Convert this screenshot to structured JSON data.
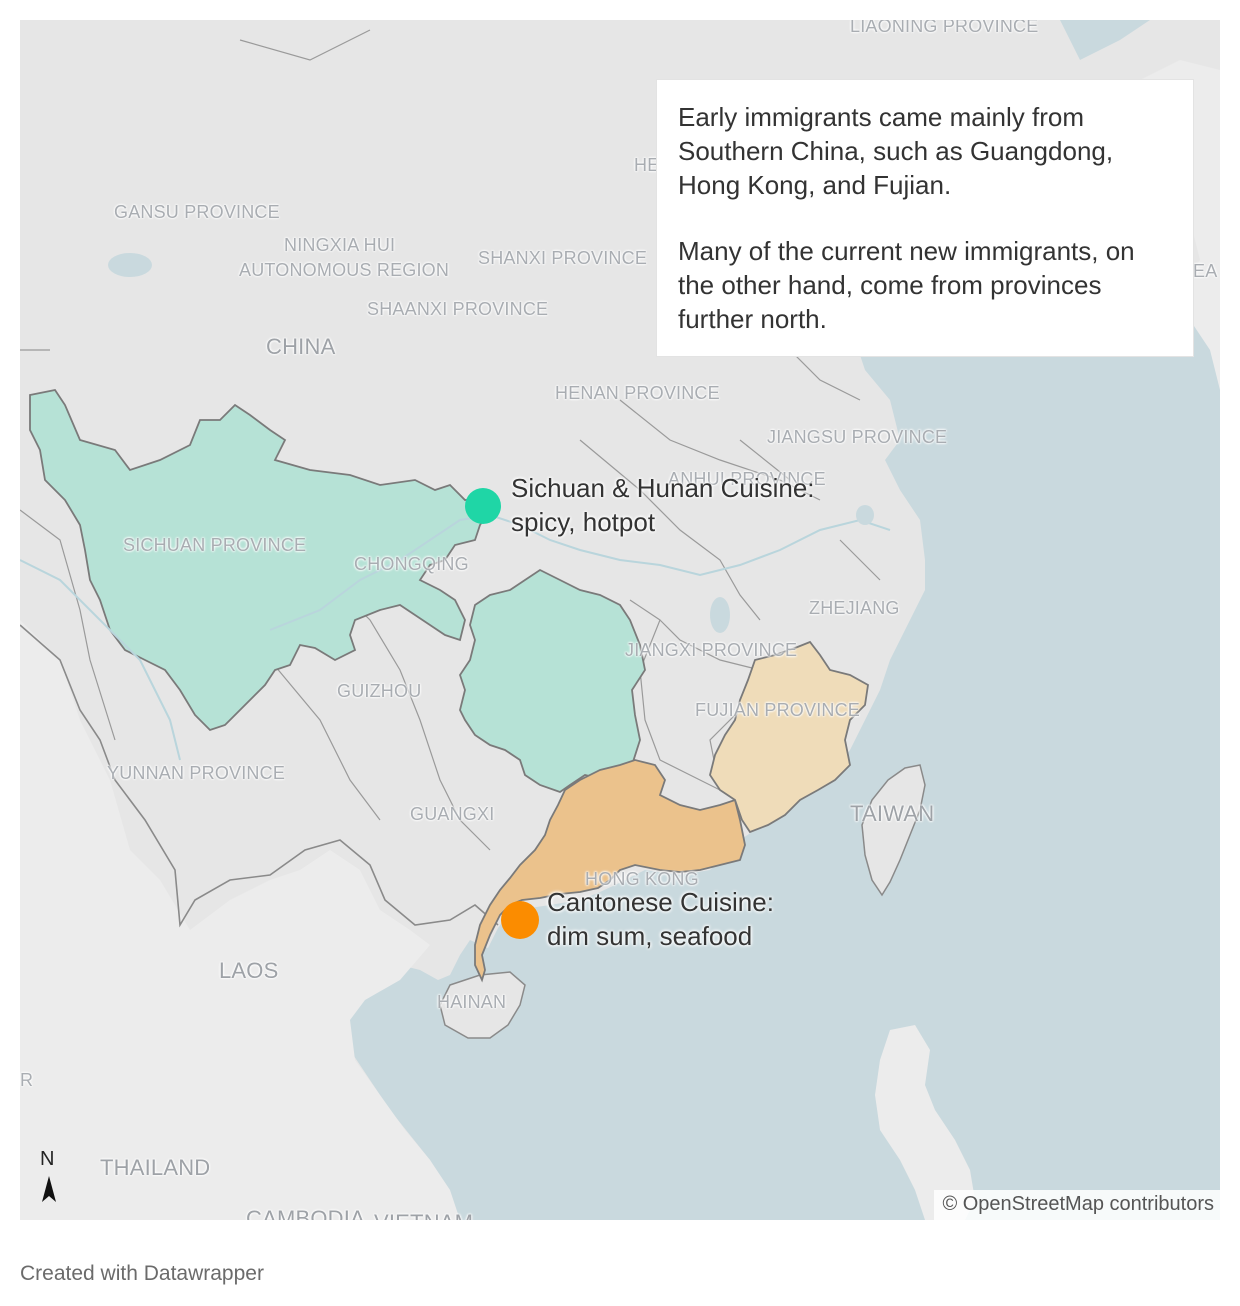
{
  "map": {
    "colors": {
      "water": "#c9d9de",
      "land": "#e5e5e5",
      "china_land": "#e6e6e6",
      "neighbor_land": "#ececec",
      "border": "#8a8a8a",
      "sichuan_hunan": "#b6e2d6",
      "guangdong": "#ebc28c",
      "fujian": "#efdcb9",
      "marker_teal": "#1fd6a6",
      "marker_orange": "#fb8c00"
    },
    "labels": {
      "liaoning": "LIAONING PROVINCE",
      "gansu": "GANSU PROVINCE",
      "ningxia_line1": "NINGXIA HUI",
      "ningxia_line2": "AUTONOMOUS REGION",
      "shanxi": "SHANXI PROVINCE",
      "shaanxi": "SHAANXI PROVINCE",
      "china": "CHINA",
      "henan": "HENAN PROVINCE",
      "jiangsu": "JIANGSU PROVINCE",
      "anhui": "ANHUI PROVINCE",
      "sichuan": "SICHUAN PROVINCE",
      "chongqing": "CHONGQING",
      "zhejiang": "ZHEJIANG",
      "jiangxi": "JIANGXI PROVINCE",
      "guizhou": "GUIZHOU",
      "fujian": "FUJIAN PROVINCE",
      "yunnan": "YUNNAN PROVINCE",
      "taiwan": "TAIWAN",
      "guangxi": "GUANGXI",
      "hongkong": "HONG KONG",
      "laos": "LAOS",
      "hainan": "HAINAN",
      "thailand": "THAILAND",
      "cambodia": "CAMBODIA",
      "vietnam": "VIETNAM",
      "hebei_partial": "HE",
      "sea_partial": "EA",
      "myanmar_partial": "R"
    },
    "callout": {
      "paragraph1": "Early immigrants came mainly from Southern China, such as Guangdong, Hong Kong, and Fujian.",
      "paragraph2": "Many of the current new immigrants, on the other hand, come from provinces further north."
    },
    "markers": [
      {
        "name": "sichuan-hunan",
        "line1": "Sichuan & Hunan Cuisine:",
        "line2": "spicy, hotpot"
      },
      {
        "name": "cantonese",
        "line1": "Cantonese Cuisine:",
        "line2": "dim sum, seafood"
      }
    ],
    "north_label": "N",
    "attribution": "© OpenStreetMap contributors"
  },
  "footer": {
    "credit": "Created with Datawrapper"
  }
}
